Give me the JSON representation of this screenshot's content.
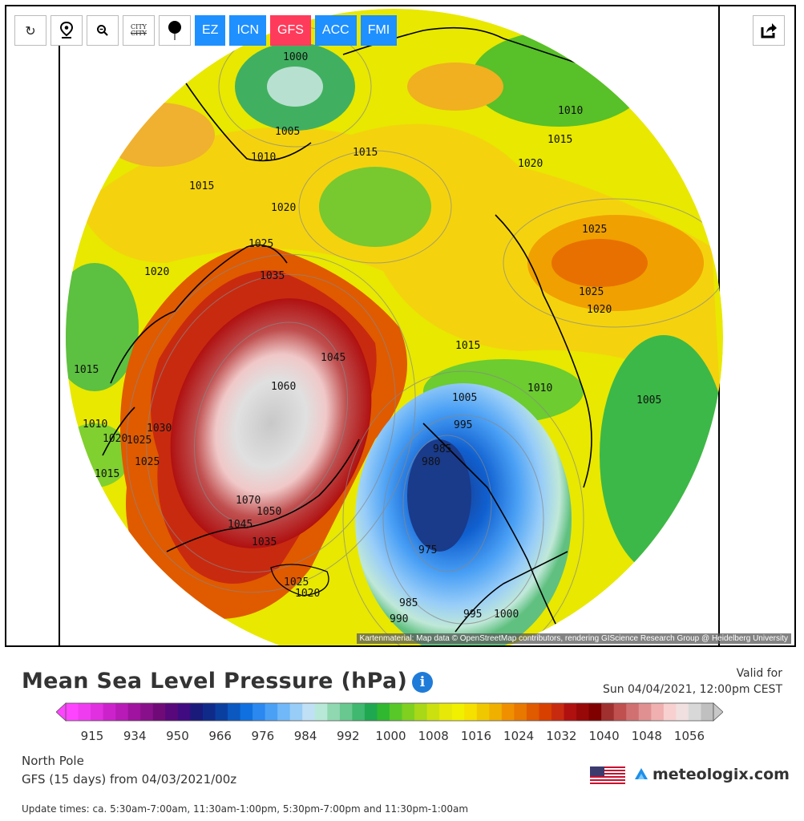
{
  "toolbar": {
    "reload_icon": "↻",
    "location_icon": "location-pin-icon",
    "zoom_icon": "zoom-icon",
    "city_label_top": "CITY",
    "city_label_bottom": "CITY",
    "balloon_icon": "balloon-icon"
  },
  "models": [
    {
      "label": "EZ",
      "color": "#1e90ff"
    },
    {
      "label": "ICN",
      "color": "#1e90ff"
    },
    {
      "label": "GFS",
      "color": "#ff3b5c"
    },
    {
      "label": "ACC",
      "color": "#1e90ff"
    },
    {
      "label": "FMI",
      "color": "#1e90ff"
    }
  ],
  "share_icon": "share-icon",
  "attribution": "Kartenmaterial: Map data © OpenStreetMap contributors, rendering GIScience Research Group @ Heidelberg University",
  "isobar_labels": [
    "1000",
    "1005",
    "1010",
    "1015",
    "1020",
    "1025",
    "1020",
    "1015",
    "1010",
    "1015",
    "1020",
    "1025",
    "1025",
    "1020",
    "1015",
    "1010",
    "1005",
    "1045",
    "1060",
    "1070",
    "1050",
    "1045",
    "1035",
    "1025",
    "1020",
    "1015",
    "1005",
    "995",
    "985",
    "980",
    "975",
    "985",
    "990",
    "995",
    "1000",
    "1010",
    "1025",
    "1015",
    "1020",
    "1025",
    "1030",
    "1035"
  ],
  "title": "Mean Sea Level Pressure (hPa)",
  "info_icon": "i",
  "valid_label": "Valid for",
  "valid_time": "Sun 04/04/2021, 12:00pm CEST",
  "legend_ticks": [
    "915",
    "934",
    "950",
    "966",
    "976",
    "984",
    "992",
    "1000",
    "1008",
    "1016",
    "1024",
    "1032",
    "1040",
    "1048",
    "1056"
  ],
  "legend_colors": [
    "#ff44ff",
    "#f03cf0",
    "#e030e0",
    "#cc22cc",
    "#b81ab8",
    "#a012a0",
    "#88108a",
    "#700a78",
    "#58087a",
    "#400a80",
    "#1a1a7a",
    "#102a8a",
    "#0a3fa0",
    "#0a58c0",
    "#1070e0",
    "#2a88f0",
    "#4aa0f5",
    "#70b8f8",
    "#98cdf8",
    "#c0e0f5",
    "#b8e8d8",
    "#90d8b0",
    "#68c890",
    "#40b870",
    "#20a850",
    "#30b830",
    "#58c828",
    "#80d020",
    "#a8d818",
    "#cce010",
    "#e8e808",
    "#f0f000",
    "#f5e000",
    "#f0c800",
    "#f0b000",
    "#f09000",
    "#e87800",
    "#e05a00",
    "#d84000",
    "#c82a10",
    "#b01010",
    "#980808",
    "#800000",
    "#a03030",
    "#c05050",
    "#d07070",
    "#e09090",
    "#f0b0b0",
    "#f8d0d0",
    "#f0e0e0",
    "#d8d8d8",
    "#c0c0c0"
  ],
  "location": "North Pole",
  "run_info": "GFS (15 days) from 04/03/2021/00z",
  "brand": "meteologix.com",
  "updates": "Update times: ca. 5:30am-7:00am, 11:30am-1:00pm, 5:30pm-7:00pm and 11:30pm-1:00am"
}
